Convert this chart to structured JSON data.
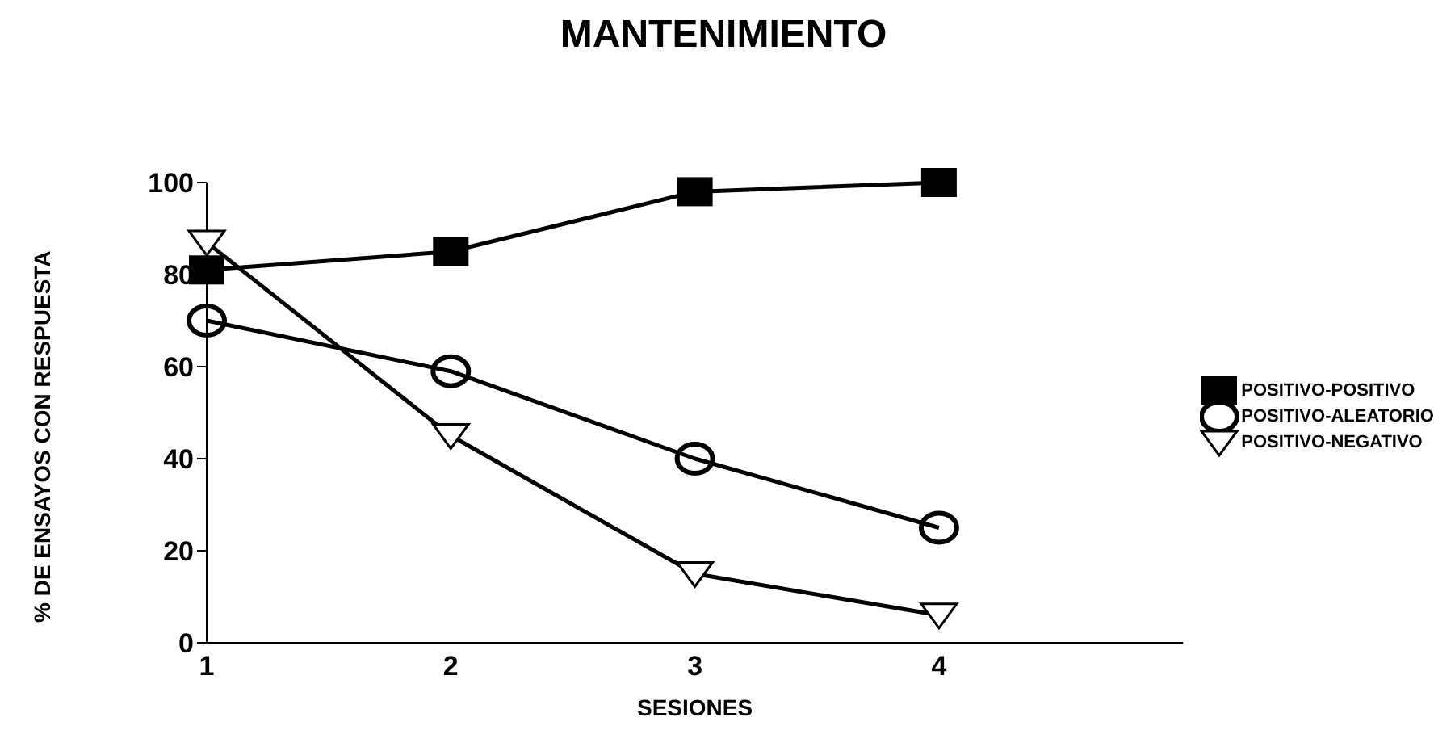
{
  "chart_data": {
    "type": "line",
    "title": "MANTENIMIENTO",
    "xlabel": "SESIONES",
    "ylabel": "% DE  ENSAYOS CON RESPUESTA",
    "categories": [
      "1",
      "2",
      "3",
      "4",
      null
    ],
    "series": [
      {
        "name": "POSITIVO-POSITIVO",
        "color": "#000000",
        "marker": "square",
        "values": [
          81,
          85,
          98,
          100,
          null
        ]
      },
      {
        "name": "POSITIVO-ALEATORIO",
        "color": "#000000",
        "marker": "circle",
        "values": [
          70,
          59,
          40,
          25,
          null
        ]
      },
      {
        "name": "POSITIVO-NEGATIVO",
        "color": "#000000",
        "marker": "triangle",
        "values": [
          87,
          45,
          15,
          6,
          null
        ]
      }
    ],
    "ylim": [
      0,
      100
    ],
    "yticks": [
      0,
      20,
      40,
      60,
      80,
      100
    ],
    "grid": false,
    "legend": "right",
    "line_style": "solid"
  }
}
